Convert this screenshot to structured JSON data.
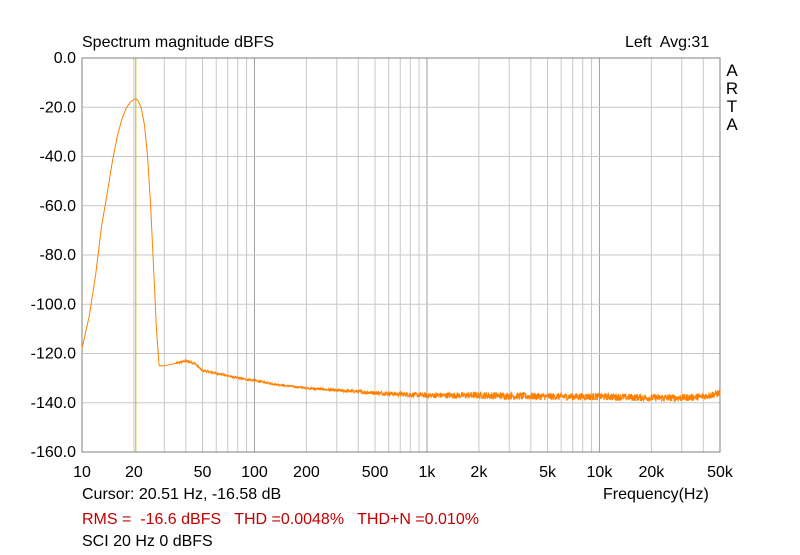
{
  "chart_data": {
    "type": "line",
    "title": "Spectrum magnitude dBFS",
    "channel_label": "Left  Avg:31",
    "brand": [
      "A",
      "R",
      "T",
      "A"
    ],
    "xlabel": "Frequency(Hz)",
    "xscale": "log",
    "xlim": [
      10,
      50000
    ],
    "ylim": [
      -160,
      0
    ],
    "grid": true,
    "x_ticks": [
      10,
      20,
      50,
      100,
      200,
      500,
      1000,
      2000,
      5000,
      10000,
      20000,
      50000
    ],
    "x_tick_labels": [
      "10",
      "20",
      "50",
      "100",
      "200",
      "500",
      "1k",
      "2k",
      "5k",
      "10k",
      "20k",
      "50k"
    ],
    "y_ticks": [
      0,
      -20,
      -40,
      -60,
      -80,
      -100,
      -120,
      -140,
      -160
    ],
    "y_tick_labels": [
      "0.0",
      "-20.0",
      "-40.0",
      "-60.0",
      "-80.0",
      "-100.0",
      "-120.0",
      "-140.0",
      "-160.0"
    ],
    "cursor": {
      "x": 20.51,
      "y": -16.58
    },
    "series": [
      {
        "color": "#ff8000",
        "x": [
          10,
          11,
          12,
          13,
          14,
          15,
          16,
          17,
          18,
          19,
          20,
          20.5,
          21,
          22,
          23,
          24,
          25,
          26,
          27,
          28,
          30,
          35,
          40,
          45,
          50,
          60,
          70,
          80,
          100,
          120,
          150,
          200,
          300,
          400,
          500,
          700,
          1000,
          2000,
          5000,
          10000,
          20000,
          30000,
          40000,
          50000
        ],
        "y": [
          -118,
          -105,
          -88,
          -68,
          -55,
          -42,
          -32,
          -25,
          -20.5,
          -18,
          -16.8,
          -16.6,
          -17,
          -20,
          -27,
          -40,
          -60,
          -85,
          -110,
          -125,
          -125,
          -124,
          -123,
          -124,
          -127,
          -128,
          -129,
          -130,
          -131,
          -132,
          -133,
          -134,
          -135,
          -135.5,
          -136,
          -136.5,
          -137,
          -137,
          -137.5,
          -137.5,
          -138,
          -138,
          -137.5,
          -136
        ]
      }
    ]
  },
  "footer": {
    "cursor_text": "Cursor: 20.51 Hz, -16.58 dB",
    "rms": "RMS =  -16.6 dBFS",
    "thd": "THD =0.0048%",
    "thdn": "THD+N =0.010%",
    "signal": "SCI 20 Hz 0 dBFS"
  },
  "colors": {
    "trace": "#ff8000",
    "cursor": "#c8b400",
    "grid": "#c8c8c8",
    "stats_text": "#c00000"
  }
}
